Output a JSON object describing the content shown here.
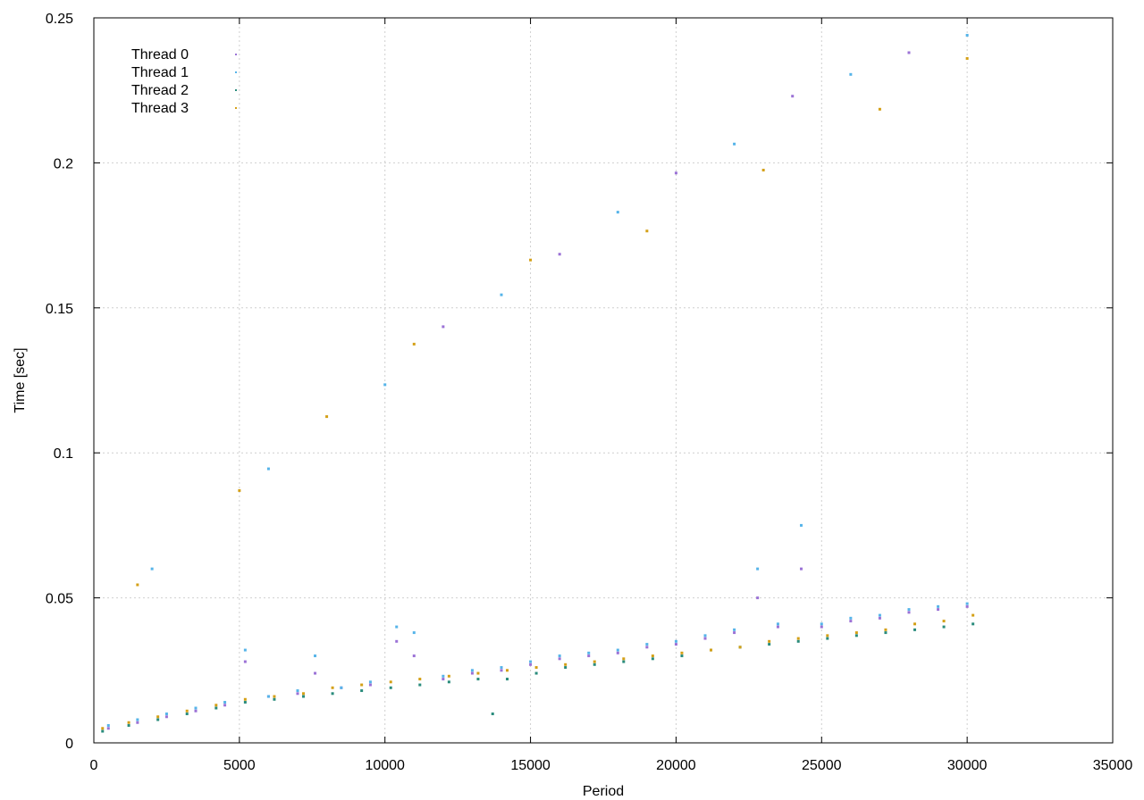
{
  "chart_data": {
    "type": "scatter",
    "title": "",
    "xlabel": "Period",
    "ylabel": "Time [sec]",
    "xlim": [
      0,
      35000
    ],
    "ylim": [
      0,
      0.25
    ],
    "x_ticks": [
      "0",
      "5000",
      "10000",
      "15000",
      "20000",
      "25000",
      "30000",
      "35000"
    ],
    "x_tick_values": [
      0,
      5000,
      10000,
      15000,
      20000,
      25000,
      30000,
      35000
    ],
    "y_ticks": [
      "0",
      "0.05",
      "0.1",
      "0.15",
      "0.2",
      "0.25"
    ],
    "y_tick_values": [
      0,
      0.05,
      0.1,
      0.15,
      0.2,
      0.25
    ],
    "grid": true,
    "legend_position": "top-left",
    "series": [
      {
        "name": "Thread 0",
        "color": "#9b72d6",
        "points": [
          [
            500,
            0.005
          ],
          [
            1500,
            0.007
          ],
          [
            2500,
            0.009
          ],
          [
            3500,
            0.011
          ],
          [
            4500,
            0.013
          ],
          [
            5200,
            0.028
          ],
          [
            6000,
            0.016
          ],
          [
            7000,
            0.017
          ],
          [
            7600,
            0.024
          ],
          [
            8500,
            0.019
          ],
          [
            9500,
            0.02
          ],
          [
            10400,
            0.035
          ],
          [
            11000,
            0.03
          ],
          [
            12000,
            0.022
          ],
          [
            13000,
            0.024
          ],
          [
            14000,
            0.025
          ],
          [
            15000,
            0.027
          ],
          [
            16000,
            0.029
          ],
          [
            17000,
            0.03
          ],
          [
            18000,
            0.031
          ],
          [
            19000,
            0.033
          ],
          [
            20000,
            0.034
          ],
          [
            21000,
            0.036
          ],
          [
            22000,
            0.038
          ],
          [
            22800,
            0.05
          ],
          [
            23500,
            0.04
          ],
          [
            24300,
            0.06
          ],
          [
            25000,
            0.04
          ],
          [
            26000,
            0.042
          ],
          [
            27000,
            0.043
          ],
          [
            28000,
            0.045
          ],
          [
            29000,
            0.046
          ],
          [
            30000,
            0.047
          ],
          [
            12000,
            0.1435
          ],
          [
            16000,
            0.1685
          ],
          [
            20000,
            0.1965
          ],
          [
            24000,
            0.223
          ],
          [
            28000,
            0.238
          ]
        ]
      },
      {
        "name": "Thread 1",
        "color": "#56b4e9",
        "points": [
          [
            500,
            0.006
          ],
          [
            1500,
            0.008
          ],
          [
            2500,
            0.01
          ],
          [
            3500,
            0.012
          ],
          [
            4500,
            0.014
          ],
          [
            5200,
            0.032
          ],
          [
            6000,
            0.016
          ],
          [
            7000,
            0.018
          ],
          [
            7600,
            0.03
          ],
          [
            8500,
            0.019
          ],
          [
            9500,
            0.021
          ],
          [
            10400,
            0.04
          ],
          [
            11000,
            0.038
          ],
          [
            12000,
            0.023
          ],
          [
            13000,
            0.025
          ],
          [
            14000,
            0.026
          ],
          [
            15000,
            0.028
          ],
          [
            16000,
            0.03
          ],
          [
            17000,
            0.031
          ],
          [
            18000,
            0.032
          ],
          [
            19000,
            0.034
          ],
          [
            20000,
            0.035
          ],
          [
            21000,
            0.037
          ],
          [
            22000,
            0.039
          ],
          [
            22800,
            0.06
          ],
          [
            23500,
            0.041
          ],
          [
            24300,
            0.075
          ],
          [
            25000,
            0.041
          ],
          [
            26000,
            0.043
          ],
          [
            27000,
            0.044
          ],
          [
            28000,
            0.046
          ],
          [
            29000,
            0.047
          ],
          [
            30000,
            0.048
          ],
          [
            2000,
            0.06
          ],
          [
            6000,
            0.0945
          ],
          [
            10000,
            0.1235
          ],
          [
            14000,
            0.1545
          ],
          [
            18000,
            0.183
          ],
          [
            22000,
            0.2065
          ],
          [
            26000,
            0.2305
          ],
          [
            30000,
            0.244
          ]
        ]
      },
      {
        "name": "Thread 2",
        "color": "#2a8c7c",
        "points": [
          [
            300,
            0.004
          ],
          [
            1200,
            0.006
          ],
          [
            2200,
            0.008
          ],
          [
            3200,
            0.01
          ],
          [
            4200,
            0.012
          ],
          [
            5200,
            0.014
          ],
          [
            6200,
            0.015
          ],
          [
            7200,
            0.016
          ],
          [
            8200,
            0.017
          ],
          [
            9200,
            0.018
          ],
          [
            10200,
            0.019
          ],
          [
            11200,
            0.02
          ],
          [
            12200,
            0.021
          ],
          [
            13200,
            0.022
          ],
          [
            13700,
            0.01
          ],
          [
            14200,
            0.022
          ],
          [
            15200,
            0.024
          ],
          [
            16200,
            0.026
          ],
          [
            17200,
            0.027
          ],
          [
            18200,
            0.028
          ],
          [
            19200,
            0.029
          ],
          [
            20200,
            0.03
          ],
          [
            21200,
            0.032
          ],
          [
            22200,
            0.033
          ],
          [
            23200,
            0.034
          ],
          [
            24200,
            0.035
          ],
          [
            25200,
            0.036
          ],
          [
            26200,
            0.037
          ],
          [
            27200,
            0.038
          ],
          [
            28200,
            0.039
          ],
          [
            29200,
            0.04
          ],
          [
            30200,
            0.041
          ]
        ]
      },
      {
        "name": "Thread 3",
        "color": "#d4a017",
        "points": [
          [
            300,
            0.005
          ],
          [
            1200,
            0.007
          ],
          [
            2200,
            0.009
          ],
          [
            3200,
            0.011
          ],
          [
            4200,
            0.013
          ],
          [
            5200,
            0.015
          ],
          [
            6200,
            0.016
          ],
          [
            7200,
            0.017
          ],
          [
            8200,
            0.019
          ],
          [
            9200,
            0.02
          ],
          [
            10200,
            0.021
          ],
          [
            11200,
            0.022
          ],
          [
            12200,
            0.023
          ],
          [
            13200,
            0.024
          ],
          [
            14200,
            0.025
          ],
          [
            15200,
            0.026
          ],
          [
            16200,
            0.027
          ],
          [
            17200,
            0.028
          ],
          [
            18200,
            0.029
          ],
          [
            19200,
            0.03
          ],
          [
            20200,
            0.031
          ],
          [
            21200,
            0.032
          ],
          [
            22200,
            0.033
          ],
          [
            23200,
            0.035
          ],
          [
            24200,
            0.036
          ],
          [
            25200,
            0.037
          ],
          [
            26200,
            0.038
          ],
          [
            27200,
            0.039
          ],
          [
            28200,
            0.041
          ],
          [
            29200,
            0.042
          ],
          [
            30200,
            0.044
          ],
          [
            1500,
            0.0545
          ],
          [
            5000,
            0.087
          ],
          [
            8000,
            0.1125
          ],
          [
            11000,
            0.1375
          ],
          [
            15000,
            0.1665
          ],
          [
            19000,
            0.1765
          ],
          [
            23000,
            0.1975
          ],
          [
            27000,
            0.2185
          ],
          [
            30000,
            0.236
          ]
        ]
      }
    ]
  }
}
